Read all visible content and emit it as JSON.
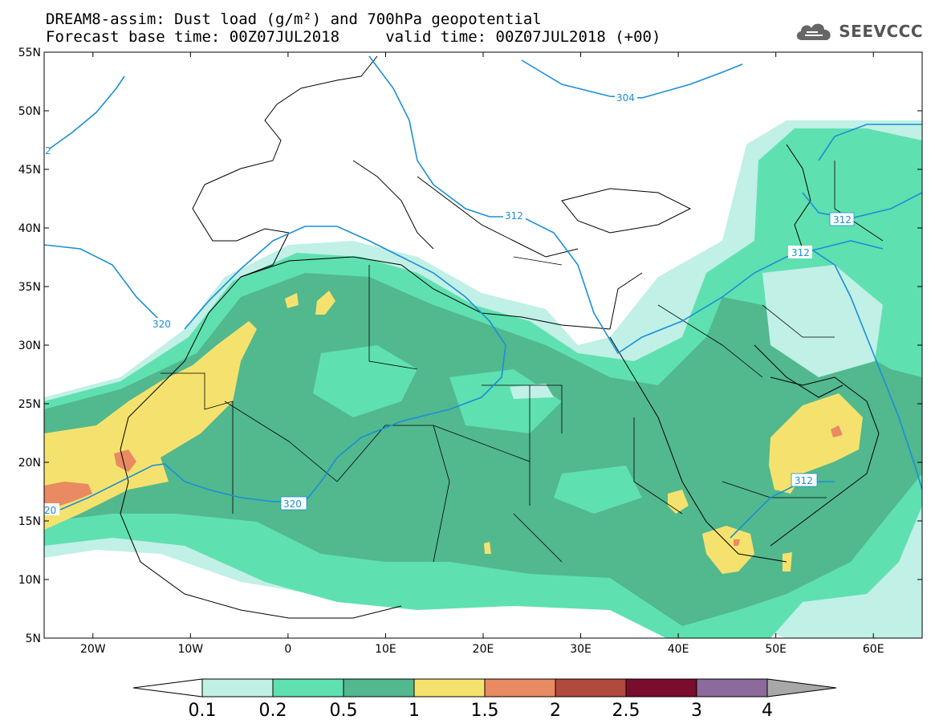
{
  "title": {
    "line1": "DREAM8-assim: Dust load (g/m²) and 700hPa geopotential",
    "line2": "Forecast base time: 00Z07JUL2018     valid time: 00Z07JUL2018 (+00)"
  },
  "logo": {
    "text": "SEEVCCC",
    "icon": "cloud-icon"
  },
  "map": {
    "lon_range": [
      -25,
      65
    ],
    "lat_range": [
      5,
      55
    ],
    "lat_ticks": [
      "55N",
      "50N",
      "45N",
      "40N",
      "35N",
      "30N",
      "25N",
      "20N",
      "15N",
      "10N",
      "5N"
    ],
    "lon_ticks": [
      "20W",
      "10W",
      "0",
      "10E",
      "20E",
      "30E",
      "40E",
      "50E",
      "60E"
    ],
    "contour_labels": [
      "304",
      "312",
      "312",
      "312",
      "312",
      "320",
      "320",
      "320",
      "2",
      "20"
    ],
    "contour_color": "#1a8fd6"
  },
  "colorbar": {
    "labels": [
      "0.1",
      "0.2",
      "0.5",
      "1",
      "1.5",
      "2",
      "2.5",
      "3",
      "4"
    ],
    "colors": [
      "#ffffff",
      "#c0f0e6",
      "#5fe0b0",
      "#52b88e",
      "#f5e26e",
      "#e98a62",
      "#b04a3c",
      "#7a0c2c",
      "#8c6a9c",
      "#a8a8a8"
    ]
  }
}
